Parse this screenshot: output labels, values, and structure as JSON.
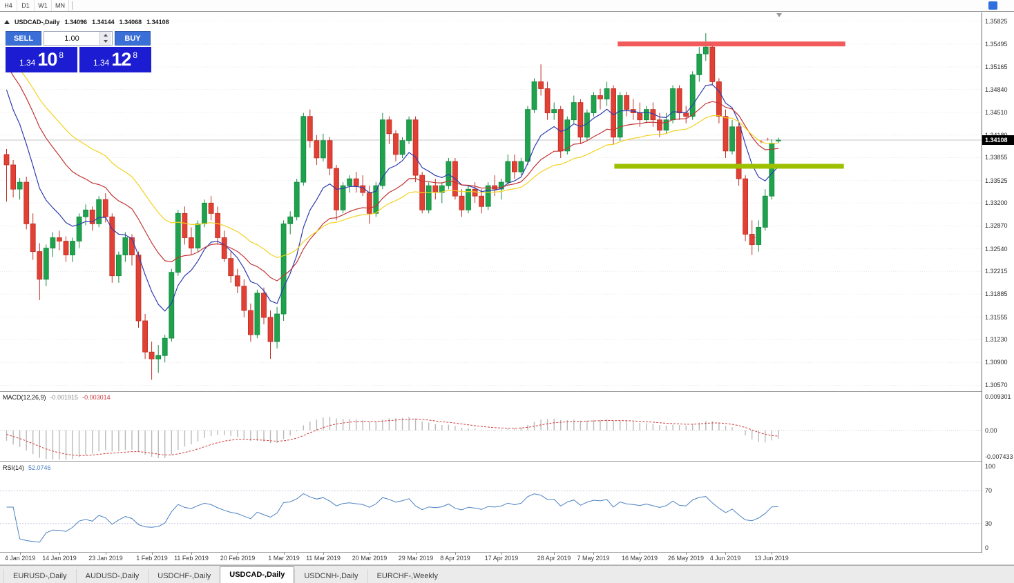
{
  "toolbar": {
    "timeframes": [
      "H4",
      "D1",
      "W1",
      "MN"
    ]
  },
  "chart": {
    "header": {
      "symbol": "USDCAD-,Daily",
      "open": "1.34096",
      "high": "1.34144",
      "low": "1.34068",
      "close": "1.34108"
    },
    "current_price_label": "1.34108"
  },
  "trade_panel": {
    "sell_label": "SELL",
    "buy_label": "BUY",
    "volume": "1.00",
    "sell_price": {
      "prefix": "1.34",
      "big": "10",
      "sup": "8"
    },
    "buy_price": {
      "prefix": "1.34",
      "big": "12",
      "sup": "8"
    }
  },
  "price_axis": {
    "labels": [
      "1.35825",
      "1.35495",
      "1.35165",
      "1.34840",
      "1.34510",
      "1.34180",
      "1.33855",
      "1.33525",
      "1.33200",
      "1.32870",
      "1.32540",
      "1.32215",
      "1.31885",
      "1.31555",
      "1.31230",
      "1.30900",
      "1.30570"
    ]
  },
  "indicators": {
    "macd": {
      "label": "MACD(12,26,9)",
      "main_value": "-0.001915",
      "signal_value": "-0.003014",
      "axis_labels": [
        "0.009301",
        "0.00",
        "-0.007433"
      ]
    },
    "rsi": {
      "label": "RSI(14)",
      "value": "52.0746",
      "axis_labels": [
        "100",
        "70",
        "30",
        "0"
      ]
    }
  },
  "tabs": {
    "items": [
      {
        "label": "EURUSD-,Daily",
        "active": false
      },
      {
        "label": "AUDUSD-,Daily",
        "active": false
      },
      {
        "label": "USDCHF-,Daily",
        "active": false
      },
      {
        "label": "USDCAD-,Daily",
        "active": true
      },
      {
        "label": "USDCNH-,Daily",
        "active": false
      },
      {
        "label": "EURCHF-,Weekly",
        "active": false
      }
    ]
  },
  "colors": {
    "candle_up": "#1fa14d",
    "candle_up_stroke": "#128a3e",
    "candle_down": "#e14034",
    "candle_down_stroke": "#bf2d24",
    "macd_bar": "#b9b9b9",
    "macd_signal": "#ce3c3c",
    "rsi_line": "#4a80c2",
    "grid": "#e9e9e9",
    "current_price_line": "#c4c4c4",
    "trade_button": "#3b6fd8",
    "price_panel": "#1c1cd2",
    "price_tag_bg": "#000000",
    "marker": "#d23030"
  },
  "chart_data": {
    "type": "candlestick",
    "symbol": "USDCAD-,Daily",
    "timeframe": "Daily",
    "current_price": 1.34108,
    "price_range": [
      1.30485,
      1.3595
    ],
    "pre_closes": [
      1.356,
      1.3565,
      1.3555,
      1.356,
      1.355,
      1.3545,
      1.355,
      1.354,
      1.3545,
      1.353,
      1.348,
      1.342
    ],
    "candles": [
      [
        1.339,
        1.3398,
        1.3322,
        1.3375
      ],
      [
        1.3375,
        1.3382,
        1.3328,
        1.334
      ],
      [
        1.334,
        1.3356,
        1.3325,
        1.335
      ],
      [
        1.335,
        1.3358,
        1.3282,
        1.329
      ],
      [
        1.329,
        1.3305,
        1.3238,
        1.325
      ],
      [
        1.325,
        1.3262,
        1.318,
        1.321
      ],
      [
        1.321,
        1.326,
        1.32,
        1.3255
      ],
      [
        1.3255,
        1.3278,
        1.3242,
        1.327
      ],
      [
        1.327,
        1.328,
        1.3252,
        1.3265
      ],
      [
        1.3265,
        1.3272,
        1.3235,
        1.3245
      ],
      [
        1.3245,
        1.327,
        1.3235,
        1.3265
      ],
      [
        1.3265,
        1.3305,
        1.3255,
        1.33
      ],
      [
        1.33,
        1.3318,
        1.3288,
        1.331
      ],
      [
        1.331,
        1.3315,
        1.328,
        1.329
      ],
      [
        1.329,
        1.333,
        1.3285,
        1.3325
      ],
      [
        1.3325,
        1.3334,
        1.3292,
        1.33
      ],
      [
        1.33,
        1.3305,
        1.3205,
        1.3215
      ],
      [
        1.3215,
        1.325,
        1.3205,
        1.3245
      ],
      [
        1.3245,
        1.3278,
        1.3235,
        1.327
      ],
      [
        1.327,
        1.3275,
        1.323,
        1.3245
      ],
      [
        1.3245,
        1.325,
        1.314,
        1.315
      ],
      [
        1.315,
        1.316,
        1.3095,
        1.3105
      ],
      [
        1.3105,
        1.312,
        1.3065,
        1.3095
      ],
      [
        1.3095,
        1.3115,
        1.3075,
        1.31
      ],
      [
        1.31,
        1.313,
        1.309,
        1.3125
      ],
      [
        1.3125,
        1.3225,
        1.312,
        1.322
      ],
      [
        1.322,
        1.331,
        1.3215,
        1.3305
      ],
      [
        1.3305,
        1.3315,
        1.326,
        1.327
      ],
      [
        1.327,
        1.3285,
        1.3245,
        1.3255
      ],
      [
        1.3255,
        1.3295,
        1.325,
        1.329
      ],
      [
        1.329,
        1.3325,
        1.3285,
        1.332
      ],
      [
        1.332,
        1.333,
        1.3295,
        1.3305
      ],
      [
        1.3305,
        1.3315,
        1.326,
        1.327
      ],
      [
        1.327,
        1.328,
        1.3235,
        1.324
      ],
      [
        1.324,
        1.325,
        1.3205,
        1.3215
      ],
      [
        1.3215,
        1.3225,
        1.319,
        1.32
      ],
      [
        1.32,
        1.321,
        1.3155,
        1.3165
      ],
      [
        1.3165,
        1.3175,
        1.312,
        1.313
      ],
      [
        1.313,
        1.3195,
        1.3125,
        1.319
      ],
      [
        1.319,
        1.3198,
        1.3145,
        1.3155
      ],
      [
        1.3155,
        1.3165,
        1.3095,
        1.312
      ],
      [
        1.312,
        1.317,
        1.311,
        1.316
      ],
      [
        1.316,
        1.3295,
        1.315,
        1.329
      ],
      [
        1.329,
        1.3308,
        1.3275,
        1.33
      ],
      [
        1.33,
        1.3355,
        1.3295,
        1.335
      ],
      [
        1.335,
        1.345,
        1.3345,
        1.3445
      ],
      [
        1.3445,
        1.3455,
        1.34,
        1.341
      ],
      [
        1.341,
        1.3418,
        1.3375,
        1.3385
      ],
      [
        1.3385,
        1.342,
        1.338,
        1.341
      ],
      [
        1.341,
        1.3415,
        1.336,
        1.337
      ],
      [
        1.337,
        1.3375,
        1.3295,
        1.331
      ],
      [
        1.331,
        1.335,
        1.3305,
        1.3345
      ],
      [
        1.3345,
        1.336,
        1.3335,
        1.3355
      ],
      [
        1.3355,
        1.3365,
        1.3335,
        1.3345
      ],
      [
        1.3345,
        1.336,
        1.333,
        1.3335
      ],
      [
        1.3335,
        1.3345,
        1.329,
        1.3305
      ],
      [
        1.3305,
        1.335,
        1.33,
        1.3345
      ],
      [
        1.3345,
        1.345,
        1.334,
        1.344
      ],
      [
        1.344,
        1.3445,
        1.3405,
        1.342
      ],
      [
        1.342,
        1.3425,
        1.338,
        1.339
      ],
      [
        1.339,
        1.3415,
        1.3385,
        1.341
      ],
      [
        1.341,
        1.3445,
        1.3405,
        1.344
      ],
      [
        1.344,
        1.3445,
        1.335,
        1.336
      ],
      [
        1.336,
        1.3365,
        1.3305,
        1.331
      ],
      [
        1.331,
        1.335,
        1.3305,
        1.3345
      ],
      [
        1.3345,
        1.3355,
        1.3325,
        1.3335
      ],
      [
        1.3335,
        1.335,
        1.332,
        1.3345
      ],
      [
        1.3345,
        1.3385,
        1.334,
        1.338
      ],
      [
        1.338,
        1.3385,
        1.3325,
        1.333
      ],
      [
        1.333,
        1.334,
        1.33,
        1.331
      ],
      [
        1.331,
        1.3345,
        1.3305,
        1.334
      ],
      [
        1.334,
        1.335,
        1.332,
        1.333
      ],
      [
        1.333,
        1.334,
        1.3305,
        1.3315
      ],
      [
        1.3315,
        1.335,
        1.331,
        1.3345
      ],
      [
        1.3345,
        1.336,
        1.333,
        1.334
      ],
      [
        1.334,
        1.3355,
        1.3325,
        1.335
      ],
      [
        1.335,
        1.339,
        1.3345,
        1.338
      ],
      [
        1.338,
        1.339,
        1.3355,
        1.3365
      ],
      [
        1.3365,
        1.3385,
        1.336,
        1.338
      ],
      [
        1.338,
        1.346,
        1.3375,
        1.3455
      ],
      [
        1.3455,
        1.35,
        1.345,
        1.3495
      ],
      [
        1.3495,
        1.352,
        1.3475,
        1.3485
      ],
      [
        1.3485,
        1.3495,
        1.344,
        1.345
      ],
      [
        1.345,
        1.3465,
        1.344,
        1.3455
      ],
      [
        1.3455,
        1.346,
        1.3385,
        1.3395
      ],
      [
        1.3395,
        1.3445,
        1.339,
        1.344
      ],
      [
        1.344,
        1.3475,
        1.3435,
        1.3465
      ],
      [
        1.3465,
        1.347,
        1.3405,
        1.3415
      ],
      [
        1.3415,
        1.3455,
        1.341,
        1.345
      ],
      [
        1.345,
        1.348,
        1.3445,
        1.3475
      ],
      [
        1.3475,
        1.3485,
        1.3455,
        1.347
      ],
      [
        1.347,
        1.3495,
        1.346,
        1.3485
      ],
      [
        1.3485,
        1.349,
        1.3405,
        1.3415
      ],
      [
        1.3415,
        1.348,
        1.341,
        1.3475
      ],
      [
        1.3475,
        1.348,
        1.3445,
        1.3455
      ],
      [
        1.3455,
        1.347,
        1.344,
        1.345
      ],
      [
        1.345,
        1.3465,
        1.343,
        1.344
      ],
      [
        1.344,
        1.346,
        1.3435,
        1.3455
      ],
      [
        1.3455,
        1.3465,
        1.343,
        1.344
      ],
      [
        1.344,
        1.345,
        1.3415,
        1.3425
      ],
      [
        1.3425,
        1.345,
        1.342,
        1.344
      ],
      [
        1.344,
        1.349,
        1.3435,
        1.3485
      ],
      [
        1.3485,
        1.349,
        1.344,
        1.345
      ],
      [
        1.345,
        1.346,
        1.3435,
        1.3445
      ],
      [
        1.3445,
        1.351,
        1.344,
        1.3505
      ],
      [
        1.3505,
        1.3545,
        1.3495,
        1.3535
      ],
      [
        1.3535,
        1.3565,
        1.3525,
        1.3545
      ],
      [
        1.3545,
        1.3552,
        1.349,
        1.3495
      ],
      [
        1.3495,
        1.35,
        1.3435,
        1.3445
      ],
      [
        1.3445,
        1.3455,
        1.3385,
        1.3395
      ],
      [
        1.3395,
        1.344,
        1.339,
        1.343
      ],
      [
        1.343,
        1.3435,
        1.3345,
        1.3355
      ],
      [
        1.3355,
        1.336,
        1.3265,
        1.3275
      ],
      [
        1.3275,
        1.3295,
        1.3245,
        1.326
      ],
      [
        1.326,
        1.3295,
        1.325,
        1.3285
      ],
      [
        1.3285,
        1.334,
        1.328,
        1.333
      ],
      [
        1.333,
        1.3412,
        1.3325,
        1.3406
      ],
      [
        1.34096,
        1.34144,
        1.34068,
        1.34108
      ]
    ],
    "date_labels": [
      {
        "label": "4 Jan 2019",
        "index": 2
      },
      {
        "label": "14 Jan 2019",
        "index": 8
      },
      {
        "label": "23 Jan 2019",
        "index": 15
      },
      {
        "label": "1 Feb 2019",
        "index": 22
      },
      {
        "label": "11 Feb 2019",
        "index": 28
      },
      {
        "label": "20 Feb 2019",
        "index": 35
      },
      {
        "label": "1 Mar 2019",
        "index": 42
      },
      {
        "label": "11 Mar 2019",
        "index": 48
      },
      {
        "label": "20 Mar 2019",
        "index": 55
      },
      {
        "label": "29 Mar 2019",
        "index": 62
      },
      {
        "label": "8 Apr 2019",
        "index": 68
      },
      {
        "label": "17 Apr 2019",
        "index": 75
      },
      {
        "label": "28 Apr 2019",
        "index": 83
      },
      {
        "label": "7 May 2019",
        "index": 89
      },
      {
        "label": "16 May 2019",
        "index": 96
      },
      {
        "label": "26 May 2019",
        "index": 103
      },
      {
        "label": "4 Jun 2019",
        "index": 109
      },
      {
        "label": "13 Jun 2019",
        "index": 116
      }
    ],
    "moving_averages": [
      {
        "name": "fast",
        "period": 9,
        "color": "#2e3cae"
      },
      {
        "name": "medium",
        "period": 21,
        "color": "#c23434"
      },
      {
        "name": "slow",
        "period": 34,
        "color": "#f2d21f"
      }
    ],
    "levels": [
      {
        "name": "resistance",
        "price": 1.35495,
        "from_index": 93,
        "to_index": 127.5,
        "color": "#f15b5b"
      },
      {
        "name": "support",
        "price": 1.3373,
        "from_index": 92.5,
        "to_index": 127.3,
        "color": "#9dc100"
      }
    ],
    "markers": [
      {
        "index": 113.3,
        "price": 1.327
      },
      {
        "index": 114.4,
        "price": 1.3408
      },
      {
        "index": 115.4,
        "price": 1.3412
      }
    ],
    "marker_glyph": "+",
    "macd": {
      "fast": 12,
      "slow": 26,
      "signal": 9,
      "range_max": 0.0105,
      "range_min": -0.0085
    },
    "rsi": {
      "period": 14,
      "levels": [
        70,
        30
      ]
    }
  }
}
